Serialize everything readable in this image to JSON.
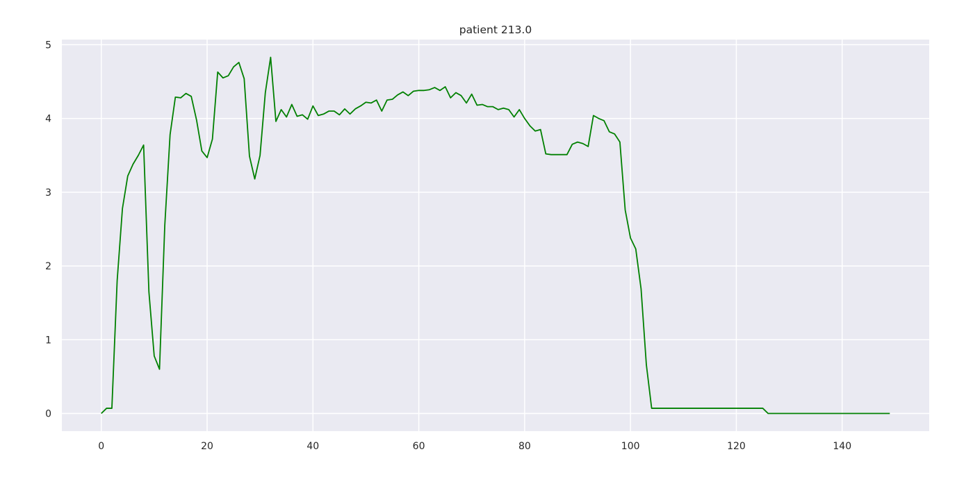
{
  "chart_data": {
    "type": "line",
    "title": "patient 213.0",
    "xlabel": "",
    "ylabel": "",
    "xlim": [
      -7.45,
      156.45
    ],
    "ylim": [
      -0.24,
      5.07
    ],
    "xticks": [
      0,
      20,
      40,
      60,
      80,
      100,
      120,
      140
    ],
    "yticks": [
      0,
      1,
      2,
      3,
      4,
      5
    ],
    "grid": true,
    "colors": {
      "background": "#eaeaf2",
      "grid": "#ffffff",
      "line": "#008000",
      "text": "#262626"
    },
    "series": [
      {
        "x": [
          0,
          1,
          2,
          3,
          4,
          5,
          6,
          7,
          8,
          9,
          10,
          11,
          12,
          13,
          14,
          15,
          16,
          17,
          18,
          19,
          20,
          21,
          22,
          23,
          24,
          25,
          26,
          27,
          28,
          29,
          30,
          31,
          32,
          33,
          34,
          35,
          36,
          37,
          38,
          39,
          40,
          41,
          42,
          43,
          44,
          45,
          46,
          47,
          48,
          49,
          50,
          51,
          52,
          53,
          54,
          55,
          56,
          57,
          58,
          59,
          60,
          61,
          62,
          63,
          64,
          65,
          66,
          67,
          68,
          69,
          70,
          71,
          72,
          73,
          74,
          75,
          76,
          77,
          78,
          79,
          80,
          81,
          82,
          83,
          84,
          85,
          86,
          87,
          88,
          89,
          90,
          91,
          92,
          93,
          94,
          95,
          96,
          97,
          98,
          99,
          100,
          101,
          102,
          103,
          104,
          105,
          106,
          107,
          108,
          109,
          110,
          111,
          112,
          113,
          114,
          115,
          116,
          117,
          118,
          119,
          120,
          121,
          122,
          123,
          124,
          125,
          126,
          127,
          128,
          129,
          130,
          131,
          132,
          133,
          134,
          135,
          136,
          137,
          138,
          139,
          140,
          141,
          142,
          143,
          144,
          145,
          146,
          147,
          148,
          149
        ],
        "values": [
          0,
          0.07,
          0.07,
          1.8,
          2.78,
          3.22,
          3.38,
          3.5,
          3.64,
          1.65,
          0.78,
          0.6,
          2.55,
          3.78,
          4.29,
          4.28,
          4.34,
          4.3,
          3.98,
          3.56,
          3.47,
          3.72,
          4.63,
          4.55,
          4.58,
          4.7,
          4.76,
          4.54,
          3.49,
          3.18,
          3.5,
          4.35,
          4.83,
          3.96,
          4.12,
          4.02,
          4.19,
          4.03,
          4.05,
          3.99,
          4.17,
          4.04,
          4.06,
          4.1,
          4.1,
          4.05,
          4.13,
          4.06,
          4.13,
          4.17,
          4.22,
          4.21,
          4.25,
          4.1,
          4.25,
          4.26,
          4.32,
          4.36,
          4.31,
          4.37,
          4.38,
          4.38,
          4.39,
          4.42,
          4.38,
          4.43,
          4.28,
          4.35,
          4.31,
          4.21,
          4.33,
          4.18,
          4.19,
          4.16,
          4.16,
          4.12,
          4.14,
          4.12,
          4.02,
          4.12,
          4.0,
          3.9,
          3.83,
          3.85,
          3.52,
          3.51,
          3.51,
          3.51,
          3.51,
          3.65,
          3.68,
          3.66,
          3.62,
          4.04,
          4.0,
          3.97,
          3.82,
          3.79,
          3.68,
          2.76,
          2.38,
          2.23,
          1.69,
          0.66,
          0.07,
          0.07,
          0.07,
          0.07,
          0.07,
          0.07,
          0.07,
          0.07,
          0.07,
          0.07,
          0.07,
          0.07,
          0.07,
          0.07,
          0.07,
          0.07,
          0.07,
          0.07,
          0.07,
          0.07,
          0.07,
          0.07,
          0,
          0,
          0,
          0,
          0,
          0,
          0,
          0,
          0,
          0,
          0,
          0,
          0,
          0,
          0,
          0,
          0,
          0,
          0,
          0,
          0,
          0,
          0,
          0
        ]
      }
    ]
  }
}
